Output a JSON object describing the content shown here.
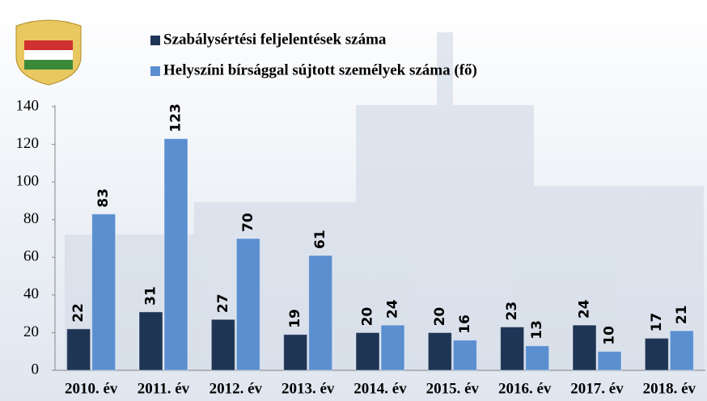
{
  "chart_data": {
    "type": "bar",
    "categories": [
      "2010. év",
      "2011. év",
      "2012. év",
      "2013. év",
      "2014. év",
      "2015. év",
      "2016. év",
      "2017. év",
      "2018. év"
    ],
    "series": [
      {
        "name": "Szabálysértési feljelentések száma",
        "color": "#1f3556",
        "values": [
          22,
          31,
          27,
          19,
          20,
          20,
          23,
          24,
          17
        ]
      },
      {
        "name": "Helyszíni bírsággal sújtott személyek száma (fő)",
        "color": "#5b8fd0",
        "values": [
          83,
          123,
          70,
          61,
          24,
          16,
          13,
          10,
          21
        ]
      }
    ],
    "ylim": [
      0,
      140
    ],
    "yticks": [
      0,
      20,
      40,
      60,
      80,
      100,
      120,
      140
    ],
    "grid": false
  }
}
